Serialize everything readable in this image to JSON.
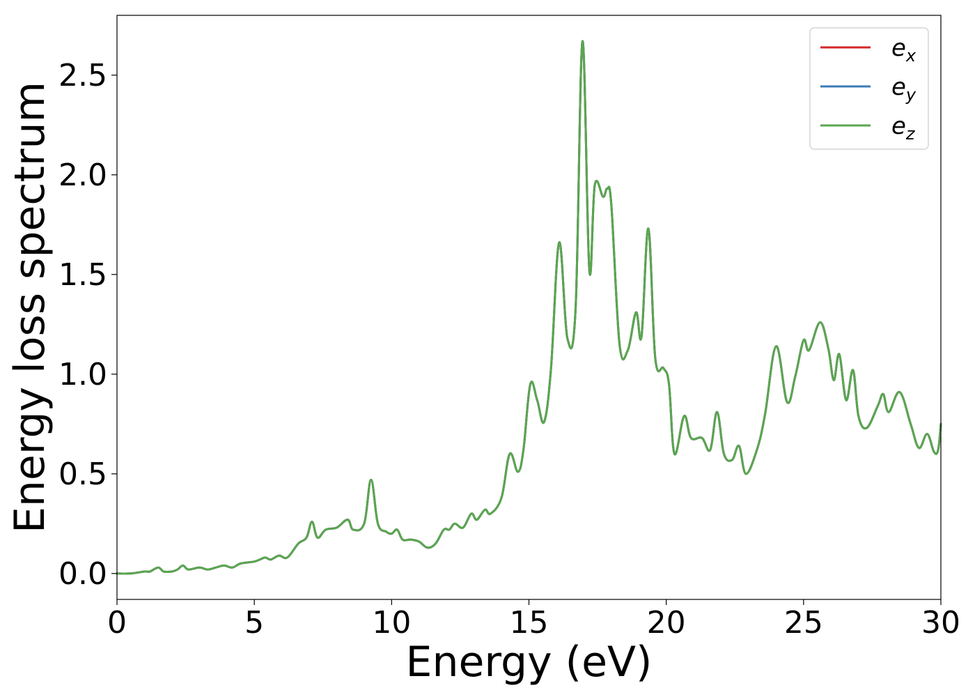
{
  "chart_data": {
    "type": "line",
    "title": "",
    "xlabel": "Energy (eV)",
    "ylabel": "Energy loss spectrum",
    "xlim": [
      0,
      30
    ],
    "ylim": [
      -0.13,
      2.8
    ],
    "xticks": [
      0,
      5,
      10,
      15,
      20,
      25,
      30
    ],
    "yticks": [
      0.0,
      0.5,
      1.0,
      1.5,
      2.0,
      2.5
    ],
    "xtick_labels": [
      "0",
      "5",
      "10",
      "15",
      "20",
      "25",
      "30"
    ],
    "ytick_labels": [
      "0.0",
      "0.5",
      "1.0",
      "1.5",
      "2.0",
      "2.5"
    ],
    "grid": false,
    "legend_position": "top-right",
    "series": [
      {
        "name": "e_x",
        "label_base": "e",
        "label_sub": "x",
        "color": "#d62728",
        "x": [
          0,
          0.5,
          1.0,
          1.2,
          1.5,
          1.7,
          2.0,
          2.2,
          2.4,
          2.6,
          3.0,
          3.3,
          3.6,
          3.9,
          4.2,
          4.5,
          5.0,
          5.2,
          5.4,
          5.6,
          5.9,
          6.2,
          6.6,
          6.9,
          7.1,
          7.3,
          7.6,
          8.0,
          8.4,
          8.6,
          9.0,
          9.25,
          9.5,
          9.8,
          10.0,
          10.2,
          10.4,
          10.7,
          11.0,
          11.3,
          11.6,
          11.9,
          12.1,
          12.3,
          12.6,
          12.9,
          13.1,
          13.4,
          13.6,
          14.0,
          14.3,
          14.6,
          14.8,
          15.05,
          15.3,
          15.55,
          15.8,
          16.1,
          16.4,
          16.7,
          16.95,
          17.2,
          17.4,
          17.7,
          17.85,
          18.0,
          18.3,
          18.6,
          18.9,
          19.1,
          19.35,
          19.6,
          19.9,
          20.1,
          20.3,
          20.65,
          20.9,
          21.3,
          21.6,
          21.85,
          22.1,
          22.4,
          22.65,
          22.9,
          23.3,
          23.6,
          24.0,
          24.4,
          24.7,
          25.0,
          25.2,
          25.6,
          25.9,
          26.1,
          26.3,
          26.55,
          26.8,
          27.0,
          27.3,
          27.7,
          27.9,
          28.1,
          28.5,
          28.9,
          29.2,
          29.5,
          29.75,
          29.9,
          30.0
        ],
        "values": [
          0.0,
          0.0,
          0.01,
          0.01,
          0.03,
          0.01,
          0.01,
          0.02,
          0.04,
          0.02,
          0.03,
          0.02,
          0.03,
          0.04,
          0.03,
          0.05,
          0.06,
          0.07,
          0.08,
          0.07,
          0.09,
          0.08,
          0.15,
          0.18,
          0.26,
          0.18,
          0.22,
          0.23,
          0.27,
          0.22,
          0.25,
          0.47,
          0.25,
          0.21,
          0.2,
          0.22,
          0.17,
          0.17,
          0.16,
          0.13,
          0.15,
          0.22,
          0.22,
          0.25,
          0.23,
          0.3,
          0.27,
          0.32,
          0.3,
          0.38,
          0.6,
          0.51,
          0.62,
          0.95,
          0.87,
          0.76,
          1.02,
          1.66,
          1.18,
          1.33,
          2.67,
          1.52,
          1.95,
          1.89,
          1.93,
          1.85,
          1.15,
          1.12,
          1.31,
          1.19,
          1.73,
          1.08,
          1.03,
          0.95,
          0.6,
          0.79,
          0.68,
          0.68,
          0.62,
          0.81,
          0.6,
          0.57,
          0.64,
          0.5,
          0.62,
          0.8,
          1.14,
          0.86,
          0.99,
          1.17,
          1.12,
          1.26,
          1.13,
          0.97,
          1.1,
          0.87,
          1.02,
          0.79,
          0.73,
          0.84,
          0.9,
          0.81,
          0.91,
          0.75,
          0.63,
          0.7,
          0.61,
          0.62,
          0.75
        ]
      },
      {
        "name": "e_y",
        "label_base": "e",
        "label_sub": "y",
        "color": "#3b7bb5",
        "x": [
          0,
          0.5,
          1.0,
          1.2,
          1.5,
          1.7,
          2.0,
          2.2,
          2.4,
          2.6,
          3.0,
          3.3,
          3.6,
          3.9,
          4.2,
          4.5,
          5.0,
          5.2,
          5.4,
          5.6,
          5.9,
          6.2,
          6.6,
          6.9,
          7.1,
          7.3,
          7.6,
          8.0,
          8.4,
          8.6,
          9.0,
          9.25,
          9.5,
          9.8,
          10.0,
          10.2,
          10.4,
          10.7,
          11.0,
          11.3,
          11.6,
          11.9,
          12.1,
          12.3,
          12.6,
          12.9,
          13.1,
          13.4,
          13.6,
          14.0,
          14.3,
          14.6,
          14.8,
          15.05,
          15.3,
          15.55,
          15.8,
          16.1,
          16.4,
          16.7,
          16.95,
          17.2,
          17.4,
          17.7,
          17.85,
          18.0,
          18.3,
          18.6,
          18.9,
          19.1,
          19.35,
          19.6,
          19.9,
          20.1,
          20.3,
          20.65,
          20.9,
          21.3,
          21.6,
          21.85,
          22.1,
          22.4,
          22.65,
          22.9,
          23.3,
          23.6,
          24.0,
          24.4,
          24.7,
          25.0,
          25.2,
          25.6,
          25.9,
          26.1,
          26.3,
          26.55,
          26.8,
          27.0,
          27.3,
          27.7,
          27.9,
          28.1,
          28.5,
          28.9,
          29.2,
          29.5,
          29.75,
          29.9,
          30.0
        ],
        "values": [
          0.0,
          0.0,
          0.01,
          0.01,
          0.03,
          0.01,
          0.01,
          0.02,
          0.04,
          0.02,
          0.03,
          0.02,
          0.03,
          0.04,
          0.03,
          0.05,
          0.06,
          0.07,
          0.08,
          0.07,
          0.09,
          0.08,
          0.15,
          0.18,
          0.26,
          0.18,
          0.22,
          0.23,
          0.27,
          0.22,
          0.25,
          0.47,
          0.25,
          0.21,
          0.2,
          0.22,
          0.17,
          0.17,
          0.16,
          0.13,
          0.15,
          0.22,
          0.22,
          0.25,
          0.23,
          0.3,
          0.27,
          0.32,
          0.3,
          0.38,
          0.6,
          0.51,
          0.62,
          0.95,
          0.87,
          0.76,
          1.02,
          1.66,
          1.18,
          1.33,
          2.67,
          1.52,
          1.95,
          1.89,
          1.93,
          1.85,
          1.15,
          1.12,
          1.31,
          1.19,
          1.73,
          1.08,
          1.03,
          0.95,
          0.6,
          0.79,
          0.68,
          0.68,
          0.62,
          0.81,
          0.6,
          0.57,
          0.64,
          0.5,
          0.62,
          0.8,
          1.14,
          0.86,
          0.99,
          1.17,
          1.12,
          1.26,
          1.13,
          0.97,
          1.1,
          0.87,
          1.02,
          0.79,
          0.73,
          0.84,
          0.9,
          0.81,
          0.91,
          0.75,
          0.63,
          0.7,
          0.61,
          0.62,
          0.75
        ]
      },
      {
        "name": "e_z",
        "label_base": "e",
        "label_sub": "z",
        "color": "#5aa64f",
        "x": [
          0,
          0.5,
          1.0,
          1.2,
          1.5,
          1.7,
          2.0,
          2.2,
          2.4,
          2.6,
          3.0,
          3.3,
          3.6,
          3.9,
          4.2,
          4.5,
          5.0,
          5.2,
          5.4,
          5.6,
          5.9,
          6.2,
          6.6,
          6.9,
          7.1,
          7.3,
          7.6,
          8.0,
          8.4,
          8.6,
          9.0,
          9.25,
          9.5,
          9.8,
          10.0,
          10.2,
          10.4,
          10.7,
          11.0,
          11.3,
          11.6,
          11.9,
          12.1,
          12.3,
          12.6,
          12.9,
          13.1,
          13.4,
          13.6,
          14.0,
          14.3,
          14.6,
          14.8,
          15.05,
          15.3,
          15.55,
          15.8,
          16.1,
          16.4,
          16.7,
          16.95,
          17.2,
          17.4,
          17.7,
          17.85,
          18.0,
          18.3,
          18.6,
          18.9,
          19.1,
          19.35,
          19.6,
          19.9,
          20.1,
          20.3,
          20.65,
          20.9,
          21.3,
          21.6,
          21.85,
          22.1,
          22.4,
          22.65,
          22.9,
          23.3,
          23.6,
          24.0,
          24.4,
          24.7,
          25.0,
          25.2,
          25.6,
          25.9,
          26.1,
          26.3,
          26.55,
          26.8,
          27.0,
          27.3,
          27.7,
          27.9,
          28.1,
          28.5,
          28.9,
          29.2,
          29.5,
          29.75,
          29.9,
          30.0
        ],
        "values": [
          0.0,
          0.0,
          0.01,
          0.01,
          0.03,
          0.01,
          0.01,
          0.02,
          0.04,
          0.02,
          0.03,
          0.02,
          0.03,
          0.04,
          0.03,
          0.05,
          0.06,
          0.07,
          0.08,
          0.07,
          0.09,
          0.08,
          0.15,
          0.18,
          0.26,
          0.18,
          0.22,
          0.23,
          0.27,
          0.22,
          0.25,
          0.47,
          0.25,
          0.21,
          0.2,
          0.22,
          0.17,
          0.17,
          0.16,
          0.13,
          0.15,
          0.22,
          0.22,
          0.25,
          0.23,
          0.3,
          0.27,
          0.32,
          0.3,
          0.38,
          0.6,
          0.51,
          0.62,
          0.95,
          0.87,
          0.76,
          1.02,
          1.66,
          1.18,
          1.33,
          2.67,
          1.52,
          1.95,
          1.89,
          1.93,
          1.85,
          1.15,
          1.12,
          1.31,
          1.19,
          1.73,
          1.08,
          1.03,
          0.95,
          0.6,
          0.79,
          0.68,
          0.68,
          0.62,
          0.81,
          0.6,
          0.57,
          0.64,
          0.5,
          0.62,
          0.8,
          1.14,
          0.86,
          0.99,
          1.17,
          1.12,
          1.26,
          1.13,
          0.97,
          1.1,
          0.87,
          1.02,
          0.79,
          0.73,
          0.84,
          0.9,
          0.81,
          0.91,
          0.75,
          0.63,
          0.7,
          0.61,
          0.62,
          0.75
        ]
      }
    ]
  }
}
